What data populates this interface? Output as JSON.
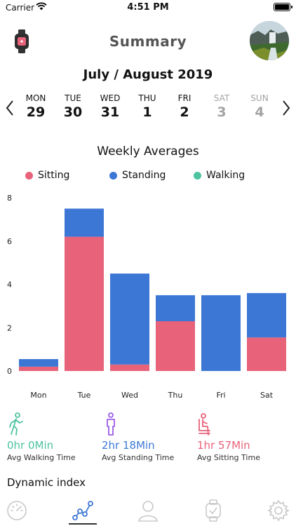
{
  "status_bar": {
    "carrier": "Carrier",
    "time": "4:51 PM"
  },
  "header": {
    "title": "Summary"
  },
  "date_range": "July / August 2019",
  "days": [
    {
      "name": "MON",
      "num": "29",
      "muted": false
    },
    {
      "name": "TUE",
      "num": "30",
      "muted": false
    },
    {
      "name": "WED",
      "num": "31",
      "muted": false
    },
    {
      "name": "THU",
      "num": "1",
      "muted": false
    },
    {
      "name": "FRI",
      "num": "2",
      "muted": false
    },
    {
      "name": "SAT",
      "num": "3",
      "muted": true
    },
    {
      "name": "SUN",
      "num": "4",
      "muted": true
    }
  ],
  "chart_title": "Weekly Averages",
  "legend": [
    {
      "label": "Sitting",
      "color": "#e8627a"
    },
    {
      "label": "Standing",
      "color": "#3d77d6"
    },
    {
      "label": "Walking",
      "color": "#4ec3a0"
    }
  ],
  "chart_data": {
    "type": "bar",
    "stacked": true,
    "title": "Weekly Averages",
    "categories": [
      "Mon",
      "Tue",
      "Wed",
      "Thu",
      "Fri",
      "Sat"
    ],
    "series": [
      {
        "name": "Sitting",
        "color": "#e8627a",
        "values": [
          0.2,
          6.2,
          0.3,
          2.3,
          0,
          1.55
        ]
      },
      {
        "name": "Standing",
        "color": "#3d77d6",
        "values": [
          0.35,
          1.3,
          4.2,
          1.2,
          3.5,
          2.05
        ]
      },
      {
        "name": "Walking",
        "color": "#4ec3a0",
        "values": [
          0,
          0,
          0,
          0,
          0,
          0
        ]
      }
    ],
    "yticks": [
      "8",
      "6",
      "4",
      "2",
      "0"
    ],
    "ylim": [
      0,
      8
    ],
    "grid": false,
    "legend_position": "top"
  },
  "stats": [
    {
      "value": "0hr  0Min",
      "label": "Avg Walking Time",
      "color": "#4ec3a0",
      "icon": "walking-person-icon"
    },
    {
      "value": "2hr  18Min",
      "label": "Avg Standing Time",
      "color": "#3d77d6",
      "icon": "standing-person-icon"
    },
    {
      "value": "1hr  57Min",
      "label": "Avg Sitting Time",
      "color": "#e8627a",
      "icon": "sitting-person-icon"
    }
  ],
  "section_title": "Dynamic index",
  "tabs": [
    {
      "icon": "speedometer-icon",
      "active": false
    },
    {
      "icon": "graph-icon",
      "active": true
    },
    {
      "icon": "person-icon",
      "active": false
    },
    {
      "icon": "watch-icon",
      "active": false
    },
    {
      "icon": "gear-icon",
      "active": false
    }
  ]
}
